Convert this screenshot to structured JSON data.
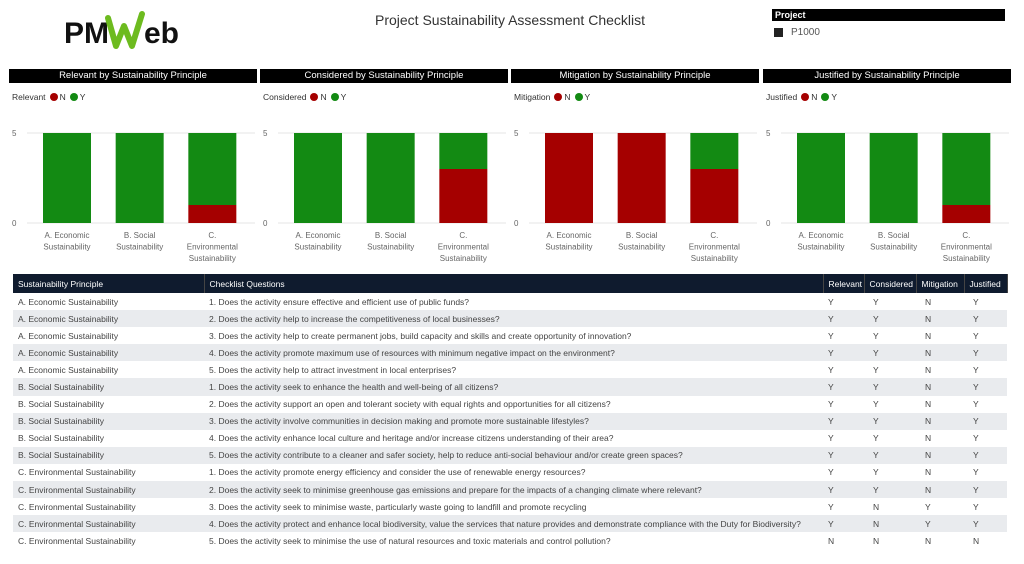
{
  "header": {
    "title": "Project Sustainability Assessment Checklist",
    "logo_text_pm": "PM",
    "logo_text_web": "Web"
  },
  "slicer": {
    "title": "Project",
    "item": "P1000"
  },
  "colors": {
    "N": "#a50000",
    "Y": "#138a13"
  },
  "chart_data": [
    {
      "type": "bar",
      "title": "Relevant by Sustainability Principle",
      "legend_title": "Relevant",
      "legend": [
        "N",
        "Y"
      ],
      "categories": [
        "A. Economic Sustainability",
        "B. Social Sustainability",
        "C. Environmental Sustainability"
      ],
      "series": [
        {
          "name": "N",
          "values": [
            0,
            0,
            1
          ]
        },
        {
          "name": "Y",
          "values": [
            5,
            5,
            4
          ]
        }
      ],
      "yticks": [
        0,
        5
      ],
      "ylim": [
        0,
        5
      ],
      "stacked": true
    },
    {
      "type": "bar",
      "title": "Considered by Sustainability Principle",
      "legend_title": "Considered",
      "legend": [
        "N",
        "Y"
      ],
      "categories": [
        "A. Economic Sustainability",
        "B. Social Sustainability",
        "C. Environmental Sustainability"
      ],
      "series": [
        {
          "name": "N",
          "values": [
            0,
            0,
            3
          ]
        },
        {
          "name": "Y",
          "values": [
            5,
            5,
            2
          ]
        }
      ],
      "yticks": [
        0,
        5
      ],
      "ylim": [
        0,
        5
      ],
      "stacked": true
    },
    {
      "type": "bar",
      "title": "Mitigation by Sustainability Principle",
      "legend_title": "Mitigation",
      "legend": [
        "N",
        "Y"
      ],
      "categories": [
        "A. Economic Sustainability",
        "B. Social Sustainability",
        "C. Environmental Sustainability"
      ],
      "series": [
        {
          "name": "N",
          "values": [
            5,
            5,
            3
          ]
        },
        {
          "name": "Y",
          "values": [
            0,
            0,
            2
          ]
        }
      ],
      "yticks": [
        0,
        5
      ],
      "ylim": [
        0,
        5
      ],
      "stacked": true
    },
    {
      "type": "bar",
      "title": "Justified by Sustainability Principle",
      "legend_title": "Justified",
      "legend": [
        "N",
        "Y"
      ],
      "categories": [
        "A. Economic Sustainability",
        "B. Social Sustainability",
        "C. Environmental Sustainability"
      ],
      "series": [
        {
          "name": "N",
          "values": [
            0,
            0,
            1
          ]
        },
        {
          "name": "Y",
          "values": [
            5,
            5,
            4
          ]
        }
      ],
      "yticks": [
        0,
        5
      ],
      "ylim": [
        0,
        5
      ],
      "stacked": true
    }
  ],
  "table": {
    "headers": [
      "Sustainability Principle",
      "Checklist Questions",
      "Relevant",
      "Considered",
      "Mitigation",
      "Justified"
    ],
    "rows": [
      [
        "A. Economic Sustainability",
        "1. Does the activity ensure effective and efficient use of public funds?",
        "Y",
        "Y",
        "N",
        "Y"
      ],
      [
        "A. Economic Sustainability",
        "2. Does the activity help to increase the competitiveness of local businesses?",
        "Y",
        "Y",
        "N",
        "Y"
      ],
      [
        "A. Economic Sustainability",
        "3. Does the activity help to create permanent jobs, build capacity and skills and create opportunity of innovation?",
        "Y",
        "Y",
        "N",
        "Y"
      ],
      [
        "A. Economic Sustainability",
        "4. Does the activity promote maximum use of resources with minimum negative impact on the environment?",
        "Y",
        "Y",
        "N",
        "Y"
      ],
      [
        "A. Economic Sustainability",
        "5. Does the activity help to attract investment in local enterprises?",
        "Y",
        "Y",
        "N",
        "Y"
      ],
      [
        "B. Social Sustainability",
        "1. Does the activity seek to enhance the health and well-being of all citizens?",
        "Y",
        "Y",
        "N",
        "Y"
      ],
      [
        "B. Social Sustainability",
        "2. Does the activity support an open and tolerant society with equal rights and opportunities for all citizens?",
        "Y",
        "Y",
        "N",
        "Y"
      ],
      [
        "B. Social Sustainability",
        "3. Does the activity involve communities in decision making and promote more sustainable lifestyles?",
        "Y",
        "Y",
        "N",
        "Y"
      ],
      [
        "B. Social Sustainability",
        "4. Does the activity enhance local culture and heritage and/or increase citizens understanding of their area?",
        "Y",
        "Y",
        "N",
        "Y"
      ],
      [
        "B. Social Sustainability",
        "5. Does the activity contribute to a cleaner and safer society, help to reduce anti-social behaviour and/or create green spaces?",
        "Y",
        "Y",
        "N",
        "Y"
      ],
      [
        "C. Environmental Sustainability",
        "1. Does the activity promote energy efficiency and consider the use of renewable energy resources?",
        "Y",
        "Y",
        "N",
        "Y"
      ],
      [
        "C. Environmental Sustainability",
        "2. Does the activity seek to minimise greenhouse gas emissions and prepare for the impacts of a changing climate where relevant?",
        "Y",
        "Y",
        "N",
        "Y"
      ],
      [
        "C. Environmental Sustainability",
        "3. Does the activity seek to minimise waste, particularly waste going to landfill and promote recycling",
        "Y",
        "N",
        "Y",
        "Y"
      ],
      [
        "C. Environmental Sustainability",
        "4. Does the activity protect and enhance local biodiversity, value the services that nature provides and demonstrate compliance with the Duty for Biodiversity?",
        "Y",
        "N",
        "Y",
        "Y"
      ],
      [
        "C. Environmental Sustainability",
        "5. Does the activity seek to minimise the use of natural resources and toxic materials and control pollution?",
        "N",
        "N",
        "N",
        "N"
      ]
    ]
  }
}
